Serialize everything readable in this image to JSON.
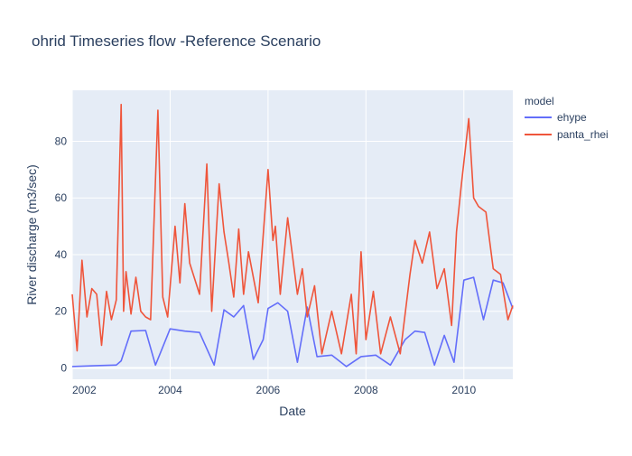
{
  "chart_data": {
    "type": "line",
    "title": "ohrid Timeseries flow -Reference Scenario",
    "xlabel": "Date",
    "ylabel": "River discharge (m3/sec)",
    "xlim": [
      2002.0,
      2011.0
    ],
    "ylim": [
      -4,
      98
    ],
    "x_ticks": [
      2002,
      2004,
      2006,
      2008,
      2010
    ],
    "x_tick_labels": [
      "2002",
      "2004",
      "2006",
      "2008",
      "2010"
    ],
    "y_ticks": [
      0,
      20,
      40,
      60,
      80
    ],
    "y_tick_labels": [
      "0",
      "20",
      "40",
      "60",
      "80"
    ],
    "grid": true,
    "legend": {
      "title": "model",
      "position": "right"
    },
    "series": [
      {
        "name": "ehype",
        "color": "#636efa",
        "x": [
          2002.0,
          2002.5,
          2002.9,
          2003.0,
          2003.2,
          2003.5,
          2003.7,
          2004.0,
          2004.3,
          2004.6,
          2004.9,
          2005.1,
          2005.3,
          2005.5,
          2005.7,
          2005.9,
          2006.0,
          2006.2,
          2006.4,
          2006.6,
          2006.8,
          2007.0,
          2007.3,
          2007.6,
          2007.9,
          2008.2,
          2008.5,
          2008.8,
          2009.0,
          2009.2,
          2009.4,
          2009.6,
          2009.8,
          2010.0,
          2010.2,
          2010.4,
          2010.6,
          2010.8,
          2011.0
        ],
        "y": [
          0.5,
          0.8,
          1.0,
          2.5,
          13.0,
          13.2,
          1.0,
          13.8,
          13.0,
          12.5,
          1.0,
          20.5,
          18.0,
          22.0,
          3.0,
          10.0,
          21.0,
          23.0,
          20.0,
          2.0,
          21.5,
          4.0,
          4.5,
          0.5,
          4.0,
          4.5,
          1.0,
          10.0,
          13.0,
          12.5,
          1.0,
          11.5,
          2.0,
          31.0,
          32.0,
          17.0,
          31.0,
          30.0,
          21.0
        ]
      },
      {
        "name": "panta_rhei",
        "color": "#ef553b",
        "x": [
          2002.0,
          2002.1,
          2002.2,
          2002.3,
          2002.4,
          2002.5,
          2002.6,
          2002.7,
          2002.8,
          2002.9,
          2003.0,
          2003.05,
          2003.1,
          2003.2,
          2003.3,
          2003.4,
          2003.5,
          2003.6,
          2003.75,
          2003.85,
          2003.95,
          2004.1,
          2004.2,
          2004.3,
          2004.4,
          2004.6,
          2004.75,
          2004.85,
          2005.0,
          2005.1,
          2005.2,
          2005.3,
          2005.4,
          2005.5,
          2005.6,
          2005.8,
          2006.0,
          2006.1,
          2006.15,
          2006.25,
          2006.4,
          2006.6,
          2006.7,
          2006.8,
          2006.95,
          2007.1,
          2007.3,
          2007.5,
          2007.7,
          2007.8,
          2007.9,
          2008.0,
          2008.15,
          2008.3,
          2008.5,
          2008.7,
          2008.9,
          2009.0,
          2009.15,
          2009.3,
          2009.45,
          2009.6,
          2009.75,
          2009.85,
          2009.95,
          2010.1,
          2010.2,
          2010.3,
          2010.45,
          2010.6,
          2010.75,
          2010.9,
          2011.0
        ],
        "y": [
          26.0,
          6.0,
          38.0,
          18.0,
          28.0,
          26.0,
          8.0,
          27.0,
          17.0,
          24.0,
          93.0,
          20.0,
          34.0,
          19.0,
          32.0,
          20.0,
          18.0,
          17.0,
          91.0,
          25.0,
          18.0,
          50.0,
          30.0,
          58.0,
          37.0,
          26.0,
          72.0,
          20.0,
          65.0,
          48.0,
          37.0,
          25.0,
          49.0,
          26.0,
          41.0,
          23.0,
          70.0,
          45.0,
          50.0,
          26.0,
          53.0,
          26.0,
          35.0,
          18.0,
          29.0,
          5.0,
          20.0,
          5.0,
          26.0,
          5.0,
          41.0,
          10.0,
          27.0,
          5.0,
          18.0,
          5.0,
          33.0,
          45.0,
          37.0,
          48.0,
          28.0,
          35.0,
          15.0,
          48.0,
          65.0,
          88.0,
          60.0,
          57.0,
          55.0,
          35.0,
          33.0,
          17.0,
          22.0
        ]
      }
    ]
  }
}
